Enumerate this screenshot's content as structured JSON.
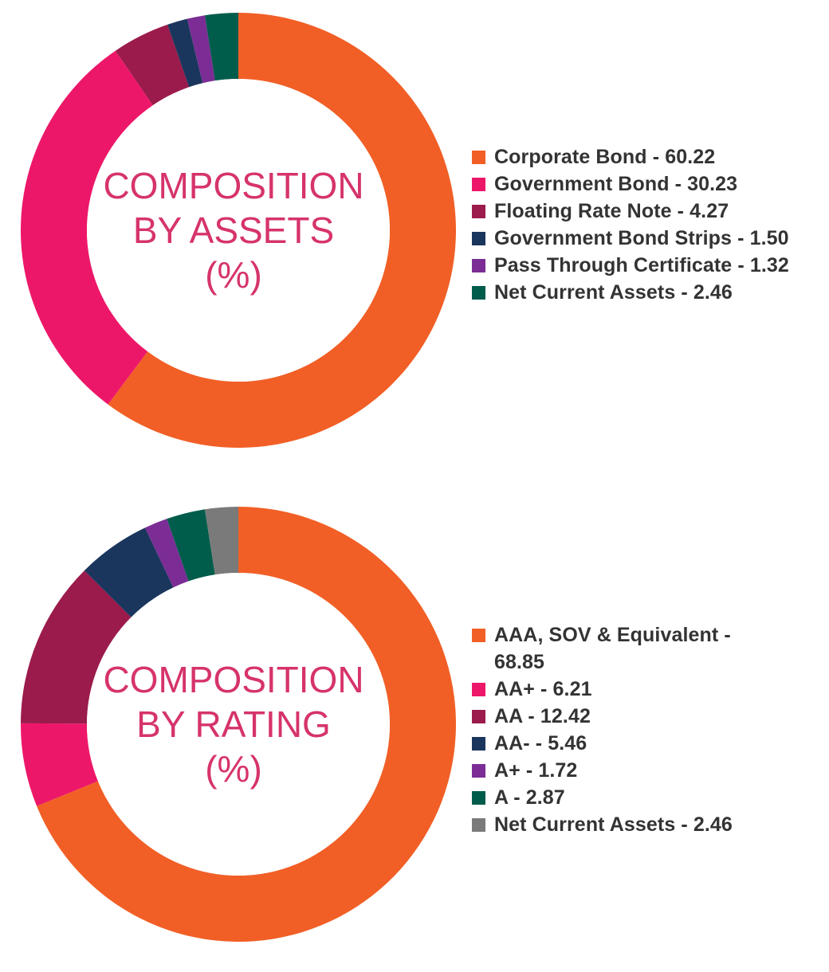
{
  "chart_data": [
    {
      "type": "pie",
      "center_label": [
        "COMPOSITION",
        "BY ASSETS",
        "(%)"
      ],
      "center_label_color": "#D6336C",
      "slices": [
        {
          "label": "Corporate Bond - 60.22",
          "name": "Corporate Bond",
          "value": 60.22,
          "color": "#F15F26"
        },
        {
          "label": "Government Bond - 30.23",
          "name": "Government Bond",
          "value": 30.23,
          "color": "#ED1769"
        },
        {
          "label": "Floating Rate Note - 4.27",
          "name": "Floating Rate Note",
          "value": 4.27,
          "color": "#9B1B4C"
        },
        {
          "label": "Government Bond Strips - 1.50",
          "name": "Government Bond Strips",
          "value": 1.5,
          "color": "#1B365D"
        },
        {
          "label": "Pass Through Certificate - 1.32",
          "name": "Pass Through Certificate",
          "value": 1.32,
          "color": "#7B2D95"
        },
        {
          "label": "Net Current Assets - 2.46",
          "name": "Net Current Assets",
          "value": 2.46,
          "color": "#005C4B"
        }
      ],
      "legend_position": "right"
    },
    {
      "type": "pie",
      "center_label": [
        "COMPOSITION",
        "BY RATING",
        "(%)"
      ],
      "center_label_color": "#D6336C",
      "slices": [
        {
          "label": "AAA, SOV & Equivalent -",
          "label_cont": "68.85",
          "name": "AAA, SOV & Equivalent",
          "value": 68.85,
          "color": "#F15F26"
        },
        {
          "label": "AA+ - 6.21",
          "name": "AA+",
          "value": 6.21,
          "color": "#ED1769"
        },
        {
          "label": "AA - 12.42",
          "name": "AA",
          "value": 12.42,
          "color": "#9B1B4C"
        },
        {
          "label": "AA- - 5.46",
          "name": "AA-",
          "value": 5.46,
          "color": "#1B365D"
        },
        {
          "label": "A+ - 1.72",
          "name": "A+",
          "value": 1.72,
          "color": "#7B2D95"
        },
        {
          "label": "A - 2.87",
          "name": "A",
          "value": 2.87,
          "color": "#005C4B"
        },
        {
          "label": "Net Current Assets - 2.46",
          "name": "Net Current Assets",
          "value": 2.46,
          "color": "#7A7A7A"
        }
      ],
      "legend_position": "right"
    }
  ]
}
